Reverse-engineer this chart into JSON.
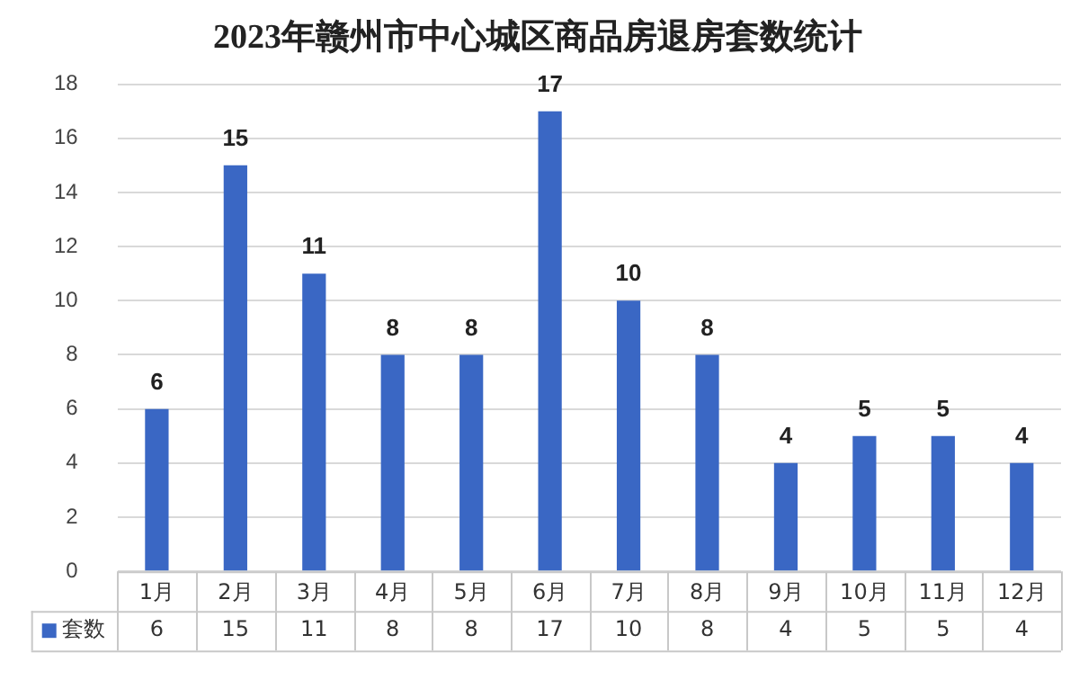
{
  "chart_data": {
    "type": "bar",
    "title": "2023年赣州市中心城区商品房退房套数统计",
    "categories": [
      "1月",
      "2月",
      "3月",
      "4月",
      "5月",
      "6月",
      "7月",
      "8月",
      "9月",
      "10月",
      "11月",
      "12月"
    ],
    "series": [
      {
        "name": "套数",
        "color": "#3a67c4",
        "values": [
          6,
          15,
          11,
          8,
          8,
          17,
          10,
          8,
          4,
          5,
          5,
          4
        ]
      }
    ],
    "ylim": [
      0,
      18
    ],
    "yticks": [
      0,
      2,
      4,
      6,
      8,
      10,
      12,
      14,
      16,
      18
    ],
    "grid": "y",
    "data_labels": true,
    "legend": "bottom",
    "annotations": [
      "6",
      "15",
      "11",
      "8",
      "8",
      "17",
      "10",
      "8",
      "4",
      "5",
      "5",
      "4"
    ]
  }
}
